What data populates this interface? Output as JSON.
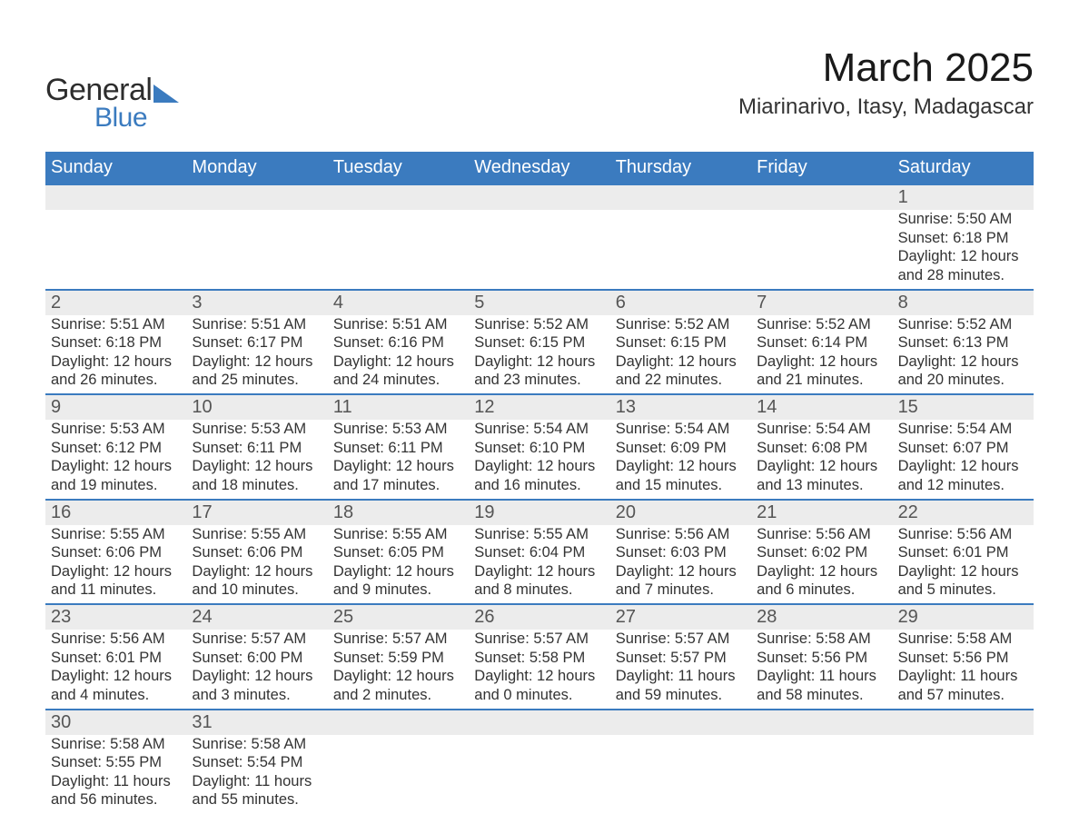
{
  "logo": {
    "word1": "General",
    "word2": "Blue",
    "accent_color": "#3b7bbf"
  },
  "title": "March 2025",
  "location": "Miarinarivo, Itasy, Madagascar",
  "style": {
    "header_bg": "#3b7bbf",
    "header_text": "#ffffff",
    "daynum_bg": "#ececec",
    "daynum_color": "#555555",
    "body_text": "#333333",
    "row_border": "#3b7bbf",
    "title_fontsize": 44,
    "location_fontsize": 24,
    "header_fontsize": 20,
    "cell_fontsize": 16.5,
    "columns": 7
  },
  "weekdays": [
    "Sunday",
    "Monday",
    "Tuesday",
    "Wednesday",
    "Thursday",
    "Friday",
    "Saturday"
  ],
  "weeks": [
    [
      null,
      null,
      null,
      null,
      null,
      null,
      {
        "n": "1",
        "sr": "Sunrise: 5:50 AM",
        "ss": "Sunset: 6:18 PM",
        "d1": "Daylight: 12 hours",
        "d2": "and 28 minutes."
      }
    ],
    [
      {
        "n": "2",
        "sr": "Sunrise: 5:51 AM",
        "ss": "Sunset: 6:18 PM",
        "d1": "Daylight: 12 hours",
        "d2": "and 26 minutes."
      },
      {
        "n": "3",
        "sr": "Sunrise: 5:51 AM",
        "ss": "Sunset: 6:17 PM",
        "d1": "Daylight: 12 hours",
        "d2": "and 25 minutes."
      },
      {
        "n": "4",
        "sr": "Sunrise: 5:51 AM",
        "ss": "Sunset: 6:16 PM",
        "d1": "Daylight: 12 hours",
        "d2": "and 24 minutes."
      },
      {
        "n": "5",
        "sr": "Sunrise: 5:52 AM",
        "ss": "Sunset: 6:15 PM",
        "d1": "Daylight: 12 hours",
        "d2": "and 23 minutes."
      },
      {
        "n": "6",
        "sr": "Sunrise: 5:52 AM",
        "ss": "Sunset: 6:15 PM",
        "d1": "Daylight: 12 hours",
        "d2": "and 22 minutes."
      },
      {
        "n": "7",
        "sr": "Sunrise: 5:52 AM",
        "ss": "Sunset: 6:14 PM",
        "d1": "Daylight: 12 hours",
        "d2": "and 21 minutes."
      },
      {
        "n": "8",
        "sr": "Sunrise: 5:52 AM",
        "ss": "Sunset: 6:13 PM",
        "d1": "Daylight: 12 hours",
        "d2": "and 20 minutes."
      }
    ],
    [
      {
        "n": "9",
        "sr": "Sunrise: 5:53 AM",
        "ss": "Sunset: 6:12 PM",
        "d1": "Daylight: 12 hours",
        "d2": "and 19 minutes."
      },
      {
        "n": "10",
        "sr": "Sunrise: 5:53 AM",
        "ss": "Sunset: 6:11 PM",
        "d1": "Daylight: 12 hours",
        "d2": "and 18 minutes."
      },
      {
        "n": "11",
        "sr": "Sunrise: 5:53 AM",
        "ss": "Sunset: 6:11 PM",
        "d1": "Daylight: 12 hours",
        "d2": "and 17 minutes."
      },
      {
        "n": "12",
        "sr": "Sunrise: 5:54 AM",
        "ss": "Sunset: 6:10 PM",
        "d1": "Daylight: 12 hours",
        "d2": "and 16 minutes."
      },
      {
        "n": "13",
        "sr": "Sunrise: 5:54 AM",
        "ss": "Sunset: 6:09 PM",
        "d1": "Daylight: 12 hours",
        "d2": "and 15 minutes."
      },
      {
        "n": "14",
        "sr": "Sunrise: 5:54 AM",
        "ss": "Sunset: 6:08 PM",
        "d1": "Daylight: 12 hours",
        "d2": "and 13 minutes."
      },
      {
        "n": "15",
        "sr": "Sunrise: 5:54 AM",
        "ss": "Sunset: 6:07 PM",
        "d1": "Daylight: 12 hours",
        "d2": "and 12 minutes."
      }
    ],
    [
      {
        "n": "16",
        "sr": "Sunrise: 5:55 AM",
        "ss": "Sunset: 6:06 PM",
        "d1": "Daylight: 12 hours",
        "d2": "and 11 minutes."
      },
      {
        "n": "17",
        "sr": "Sunrise: 5:55 AM",
        "ss": "Sunset: 6:06 PM",
        "d1": "Daylight: 12 hours",
        "d2": "and 10 minutes."
      },
      {
        "n": "18",
        "sr": "Sunrise: 5:55 AM",
        "ss": "Sunset: 6:05 PM",
        "d1": "Daylight: 12 hours",
        "d2": "and 9 minutes."
      },
      {
        "n": "19",
        "sr": "Sunrise: 5:55 AM",
        "ss": "Sunset: 6:04 PM",
        "d1": "Daylight: 12 hours",
        "d2": "and 8 minutes."
      },
      {
        "n": "20",
        "sr": "Sunrise: 5:56 AM",
        "ss": "Sunset: 6:03 PM",
        "d1": "Daylight: 12 hours",
        "d2": "and 7 minutes."
      },
      {
        "n": "21",
        "sr": "Sunrise: 5:56 AM",
        "ss": "Sunset: 6:02 PM",
        "d1": "Daylight: 12 hours",
        "d2": "and 6 minutes."
      },
      {
        "n": "22",
        "sr": "Sunrise: 5:56 AM",
        "ss": "Sunset: 6:01 PM",
        "d1": "Daylight: 12 hours",
        "d2": "and 5 minutes."
      }
    ],
    [
      {
        "n": "23",
        "sr": "Sunrise: 5:56 AM",
        "ss": "Sunset: 6:01 PM",
        "d1": "Daylight: 12 hours",
        "d2": "and 4 minutes."
      },
      {
        "n": "24",
        "sr": "Sunrise: 5:57 AM",
        "ss": "Sunset: 6:00 PM",
        "d1": "Daylight: 12 hours",
        "d2": "and 3 minutes."
      },
      {
        "n": "25",
        "sr": "Sunrise: 5:57 AM",
        "ss": "Sunset: 5:59 PM",
        "d1": "Daylight: 12 hours",
        "d2": "and 2 minutes."
      },
      {
        "n": "26",
        "sr": "Sunrise: 5:57 AM",
        "ss": "Sunset: 5:58 PM",
        "d1": "Daylight: 12 hours",
        "d2": "and 0 minutes."
      },
      {
        "n": "27",
        "sr": "Sunrise: 5:57 AM",
        "ss": "Sunset: 5:57 PM",
        "d1": "Daylight: 11 hours",
        "d2": "and 59 minutes."
      },
      {
        "n": "28",
        "sr": "Sunrise: 5:58 AM",
        "ss": "Sunset: 5:56 PM",
        "d1": "Daylight: 11 hours",
        "d2": "and 58 minutes."
      },
      {
        "n": "29",
        "sr": "Sunrise: 5:58 AM",
        "ss": "Sunset: 5:56 PM",
        "d1": "Daylight: 11 hours",
        "d2": "and 57 minutes."
      }
    ],
    [
      {
        "n": "30",
        "sr": "Sunrise: 5:58 AM",
        "ss": "Sunset: 5:55 PM",
        "d1": "Daylight: 11 hours",
        "d2": "and 56 minutes."
      },
      {
        "n": "31",
        "sr": "Sunrise: 5:58 AM",
        "ss": "Sunset: 5:54 PM",
        "d1": "Daylight: 11 hours",
        "d2": "and 55 minutes."
      },
      null,
      null,
      null,
      null,
      null
    ]
  ]
}
